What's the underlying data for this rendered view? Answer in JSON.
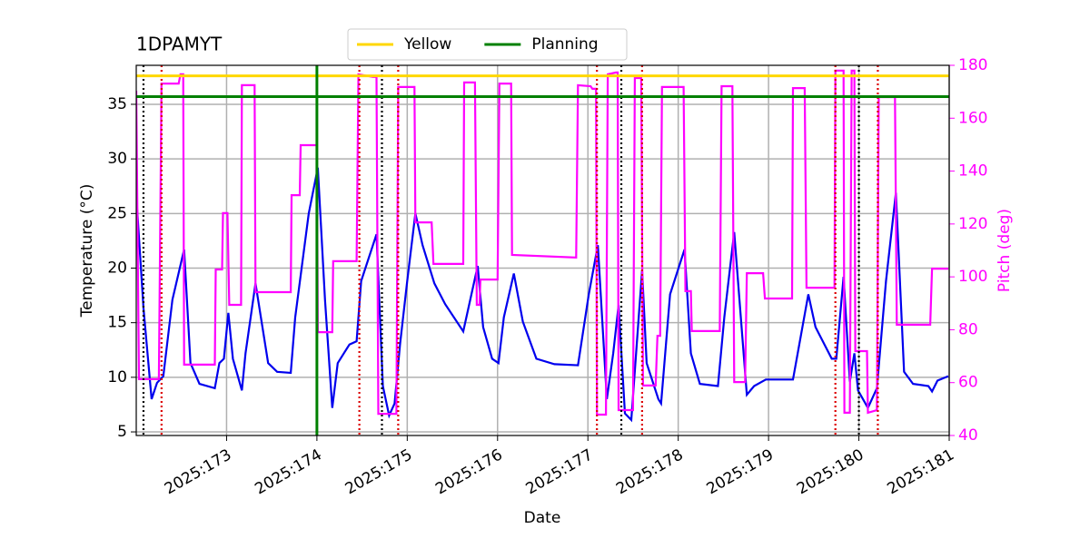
{
  "chart_data": {
    "type": "line",
    "title": "1DPAMYT",
    "xlabel": "Date",
    "ylabel": "Temperature (°C)",
    "y2label": "Pitch (deg)",
    "xlim": [
      172,
      181
    ],
    "xticks": [
      {
        "value": 173,
        "label": "2025:173"
      },
      {
        "value": 174,
        "label": "2025:174"
      },
      {
        "value": 175,
        "label": "2025:175"
      },
      {
        "value": 176,
        "label": "2025:176"
      },
      {
        "value": 177,
        "label": "2025:177"
      },
      {
        "value": 178,
        "label": "2025:178"
      },
      {
        "value": 179,
        "label": "2025:179"
      },
      {
        "value": 180,
        "label": "2025:180"
      },
      {
        "value": 181,
        "label": "2025:181"
      }
    ],
    "ylim": [
      4.67,
      38.57
    ],
    "yticks": [
      5,
      10,
      15,
      20,
      25,
      30,
      35
    ],
    "y2lim": [
      40,
      180
    ],
    "y2ticks": [
      40,
      60,
      80,
      100,
      120,
      140,
      160,
      180
    ],
    "grid": true,
    "legend": "top center",
    "series": [
      {
        "color": "#0000ee",
        "axis": "y",
        "x": [
          172.0,
          172.08,
          172.17,
          172.23,
          172.3,
          172.4,
          172.53,
          172.6,
          172.7,
          172.87,
          172.92,
          172.97,
          173.02,
          173.07,
          173.17,
          173.21,
          173.32,
          173.46,
          173.56,
          173.71,
          173.76,
          173.91,
          174.01,
          174.09,
          174.17,
          174.23,
          174.36,
          174.44,
          174.49,
          174.66,
          174.73,
          174.8,
          174.86,
          174.92,
          175.0,
          175.09,
          175.17,
          175.3,
          175.42,
          175.62,
          175.78,
          175.84,
          175.94,
          176.01,
          176.07,
          176.18,
          176.28,
          176.43,
          176.63,
          176.89,
          177.01,
          177.11,
          177.21,
          177.28,
          177.34,
          177.41,
          177.48,
          177.6,
          177.65,
          177.78,
          177.81,
          177.91,
          178.07,
          178.14,
          178.24,
          178.44,
          178.51,
          178.62,
          178.76,
          178.84,
          178.97,
          179.27,
          179.44,
          179.52,
          179.7,
          179.75,
          179.83,
          179.9,
          179.95,
          179.99,
          180.1,
          180.2,
          180.3,
          180.41,
          180.5,
          180.6,
          180.77,
          180.81,
          180.87,
          180.99
        ],
        "values": [
          26.7,
          16.3,
          8.0,
          9.5,
          10.1,
          17.1,
          21.7,
          11.3,
          9.4,
          9.0,
          11.3,
          11.7,
          15.9,
          11.7,
          8.8,
          12.2,
          18.6,
          11.3,
          10.5,
          10.4,
          15.5,
          25.0,
          29.2,
          17.1,
          7.2,
          11.3,
          13.0,
          13.3,
          18.8,
          23.1,
          9.2,
          6.5,
          7.6,
          13.0,
          18.8,
          25.0,
          22.1,
          18.6,
          16.7,
          14.2,
          20.2,
          14.6,
          11.7,
          11.3,
          15.5,
          19.5,
          15.1,
          11.7,
          11.2,
          11.1,
          17.6,
          22.1,
          8.0,
          12.2,
          16.6,
          6.7,
          6.1,
          19.8,
          11.3,
          8.0,
          7.6,
          17.6,
          21.7,
          12.2,
          9.4,
          9.2,
          15.5,
          23.3,
          8.4,
          9.2,
          9.8,
          9.8,
          17.6,
          14.6,
          11.7,
          11.7,
          19.2,
          9.6,
          12.2,
          8.8,
          7.2,
          9.0,
          18.8,
          26.9,
          10.5,
          9.4,
          9.2,
          8.7,
          9.7,
          10.1
        ]
      },
      {
        "color": "#ff00ff",
        "axis": "y2",
        "x": [
          172.0,
          172.03,
          172.25,
          172.28,
          172.47,
          172.49,
          172.52,
          172.53,
          172.87,
          172.88,
          172.95,
          172.96,
          173.01,
          173.03,
          173.16,
          173.17,
          173.31,
          173.32,
          173.71,
          173.72,
          173.81,
          173.82,
          174.0,
          174.01,
          174.17,
          174.18,
          174.44,
          174.46,
          174.62,
          174.66,
          174.68,
          174.88,
          174.9,
          175.08,
          175.09,
          175.27,
          175.29,
          175.62,
          175.63,
          175.75,
          175.77,
          175.8,
          175.81,
          176.0,
          176.02,
          176.15,
          176.16,
          176.87,
          176.89,
          177.03,
          177.05,
          177.09,
          177.1,
          177.2,
          177.22,
          177.31,
          177.33,
          177.34,
          177.5,
          177.52,
          177.59,
          177.61,
          177.75,
          177.77,
          177.8,
          177.82,
          178.06,
          178.08,
          178.14,
          178.15,
          178.46,
          178.48,
          178.6,
          178.62,
          178.74,
          178.76,
          178.94,
          178.96,
          179.26,
          179.27,
          179.4,
          179.42,
          179.73,
          179.74,
          179.83,
          179.84,
          179.9,
          179.92,
          179.95,
          179.96,
          180.09,
          180.1,
          180.2,
          180.22,
          180.4,
          180.42,
          180.79,
          180.81,
          180.99
        ],
        "values": [
          170.4,
          61.3,
          61.3,
          173.1,
          173.1,
          176.6,
          176.6,
          66.8,
          66.8,
          102.8,
          102.8,
          124.1,
          124.1,
          89.4,
          89.4,
          172.5,
          172.5,
          94.2,
          94.2,
          130.9,
          130.9,
          149.8,
          149.8,
          79.1,
          79.1,
          105.9,
          105.9,
          176.6,
          175.6,
          175.6,
          48.2,
          48.2,
          171.8,
          171.8,
          120.6,
          120.6,
          104.9,
          104.9,
          173.5,
          173.5,
          89.4,
          89.4,
          99.0,
          99.0,
          173.1,
          173.1,
          108.3,
          107.3,
          172.5,
          172.1,
          171.1,
          171.1,
          47.9,
          47.9,
          176.6,
          177.3,
          177.3,
          49.6,
          49.6,
          175.2,
          175.2,
          58.9,
          58.9,
          77.7,
          77.7,
          171.8,
          171.8,
          94.6,
          94.6,
          79.5,
          79.5,
          172.1,
          172.1,
          60.2,
          60.2,
          101.4,
          101.4,
          91.8,
          91.8,
          171.4,
          171.4,
          95.9,
          95.9,
          178.0,
          178.0,
          48.6,
          48.6,
          178.0,
          178.0,
          71.9,
          71.9,
          48.6,
          49.6,
          168.0,
          168.0,
          81.9,
          81.9,
          103.1,
          103.1
        ]
      }
    ],
    "hlines": [
      {
        "name": "Yellow",
        "color": "#ffd700",
        "value": 37.6
      },
      {
        "name": "Planning",
        "color": "#008000",
        "value": 35.7,
        "x": 174.0
      }
    ],
    "vlines": [
      {
        "color": "#000000",
        "x": [
          172.08,
          174.72,
          177.37,
          180.0
        ]
      },
      {
        "color": "#dd0000",
        "x": [
          172.28,
          174.47,
          174.9,
          177.1,
          177.6,
          179.74,
          180.21
        ]
      }
    ]
  }
}
